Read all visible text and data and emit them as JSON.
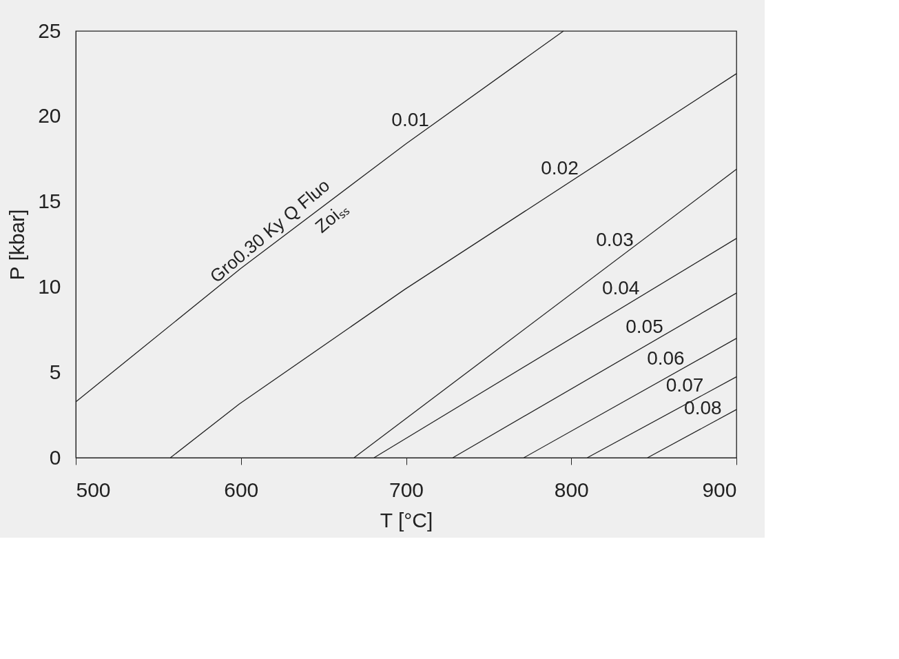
{
  "chart_data": {
    "type": "line",
    "xlabel": "T [°C]",
    "ylabel": "P [kbar]",
    "xlim": [
      500,
      900
    ],
    "ylim": [
      0,
      25
    ],
    "xticks": [
      500,
      600,
      700,
      800,
      900
    ],
    "yticks": [
      0,
      5,
      10,
      15,
      20,
      25
    ],
    "grid": false,
    "legend": false,
    "marker": "none",
    "line_style": "solid",
    "series": [
      {
        "name": "0.01",
        "color": "#222222",
        "x": [
          500,
          600,
          700,
          795.3
        ],
        "values": [
          3.27,
          11.1,
          18.4,
          25
        ]
      },
      {
        "name": "0.02",
        "color": "#222222",
        "x": [
          557.3,
          598.9,
          699.3,
          900
        ],
        "values": [
          0,
          3.14,
          9.87,
          22.5
        ]
      },
      {
        "name": "0.03",
        "color": "#222222",
        "x": [
          668.5,
          900
        ],
        "values": [
          0,
          16.9
        ]
      },
      {
        "name": "0.04",
        "color": "#222222",
        "x": [
          680.6,
          900
        ],
        "values": [
          0,
          12.85
        ]
      },
      {
        "name": "0.05",
        "color": "#222222",
        "x": [
          728.3,
          900
        ],
        "values": [
          0,
          9.65
        ]
      },
      {
        "name": "0.06",
        "color": "#222222",
        "x": [
          771.3,
          900
        ],
        "values": [
          0,
          6.99
        ]
      },
      {
        "name": "0.07",
        "color": "#222222",
        "x": [
          809.7,
          900
        ],
        "values": [
          0,
          4.74
        ]
      },
      {
        "name": "0.08",
        "color": "#222222",
        "x": [
          846.2,
          900
        ],
        "values": [
          0,
          2.82
        ]
      }
    ],
    "annotations": [
      "Gro0.30 Ky Q Fluo",
      "Zoiₛₛ"
    ]
  }
}
